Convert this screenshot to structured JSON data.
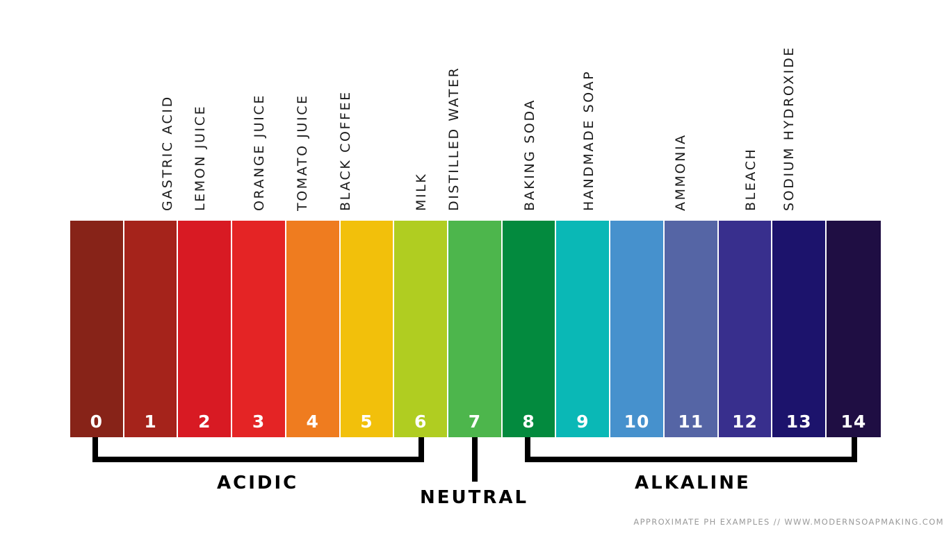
{
  "scale": {
    "cells": [
      {
        "value": "0",
        "color": "#872318"
      },
      {
        "value": "1",
        "color": "#a5231b"
      },
      {
        "value": "2",
        "color": "#d81a23"
      },
      {
        "value": "3",
        "color": "#e42425"
      },
      {
        "value": "4",
        "color": "#ef7c1f"
      },
      {
        "value": "5",
        "color": "#f2c00b"
      },
      {
        "value": "6",
        "color": "#b0cd21"
      },
      {
        "value": "7",
        "color": "#4db64c"
      },
      {
        "value": "8",
        "color": "#038a3e"
      },
      {
        "value": "9",
        "color": "#0ab8b6"
      },
      {
        "value": "10",
        "color": "#4691cd"
      },
      {
        "value": "11",
        "color": "#5565a5"
      },
      {
        "value": "12",
        "color": "#382f8d"
      },
      {
        "value": "13",
        "color": "#1c136c"
      },
      {
        "value": "14",
        "color": "#1f0e43"
      }
    ]
  },
  "examples": [
    {
      "text": "GASTRIC ACID",
      "ph": 1.8
    },
    {
      "text": "LEMON JUICE",
      "ph": 2.4
    },
    {
      "text": "ORANGE JUICE",
      "ph": 3.5
    },
    {
      "text": "TOMATO JUICE",
      "ph": 4.3
    },
    {
      "text": "BLACK COFFEE",
      "ph": 5.1
    },
    {
      "text": "MILK",
      "ph": 6.5
    },
    {
      "text": "DISTILLED WATER",
      "ph": 7.1
    },
    {
      "text": "BAKING SODA",
      "ph": 8.5
    },
    {
      "text": "HANDMADE SOAP",
      "ph": 9.6
    },
    {
      "text": "AMMONIA",
      "ph": 11.3
    },
    {
      "text": "BLEACH",
      "ph": 12.6
    },
    {
      "text": "SODIUM HYDROXIDE",
      "ph": 13.3
    }
  ],
  "groups": {
    "acidic": "ACIDIC",
    "neutral": "NEUTRAL",
    "alkaline": "ALKALINE"
  },
  "footer": "APPROXIMATE PH EXAMPLES // WWW.MODERNSOAPMAKING.COM"
}
